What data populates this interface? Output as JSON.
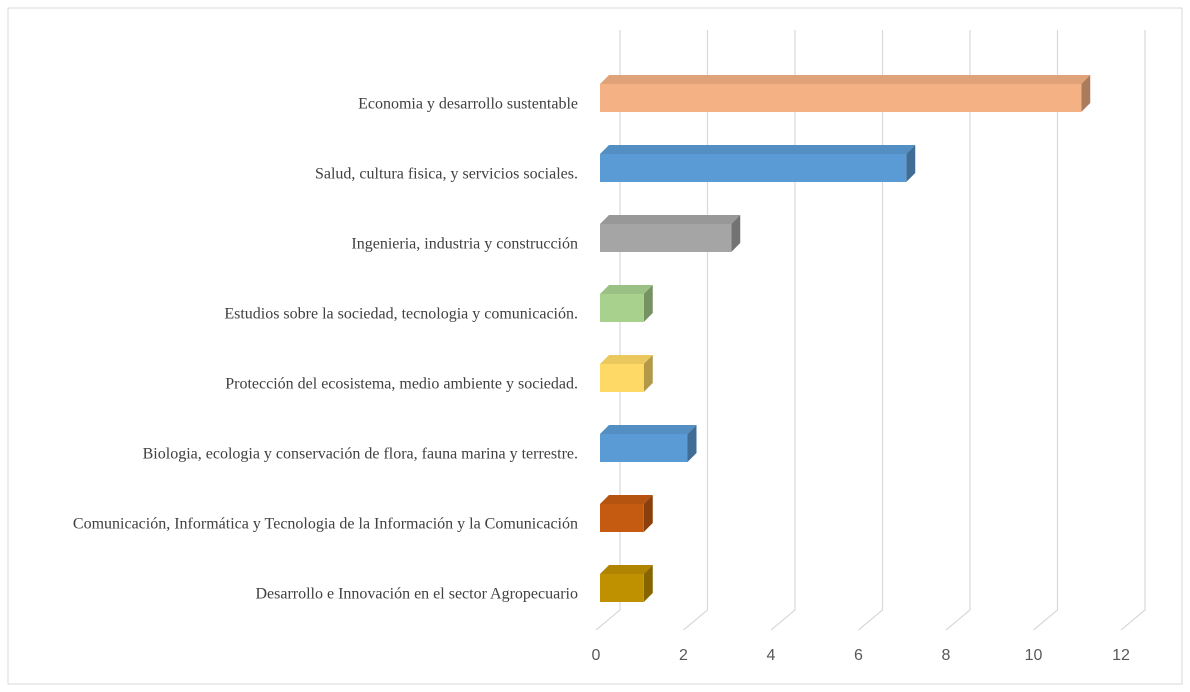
{
  "chart_data": {
    "type": "bar3d_horizontal",
    "categories": [
      "Economia y desarrollo sustentable",
      "Salud, cultura fisica, y servicios sociales.",
      "Ingenieria, industria y construcción",
      "Estudios sobre la sociedad, tecnologia y comunicación.",
      "Protección del ecosistema, medio ambiente y sociedad.",
      "Biologia,  ecologia y conservación de flora, fauna marina y terrestre.",
      "Comunicación,  Informática y Tecnologia de la Información y la Comunicación",
      "Desarrollo e Innovación en el sector Agropecuario"
    ],
    "values": [
      11,
      7,
      3,
      1,
      1,
      2,
      1,
      1
    ],
    "colors": [
      "#f4b183",
      "#5b9bd5",
      "#a5a5a5",
      "#a9d18e",
      "#ffd966",
      "#5b9bd5",
      "#c55a11",
      "#bf9000"
    ],
    "xlim": [
      0,
      12
    ],
    "xticks": [
      0,
      2,
      4,
      6,
      8,
      10,
      12
    ],
    "grid": true
  }
}
